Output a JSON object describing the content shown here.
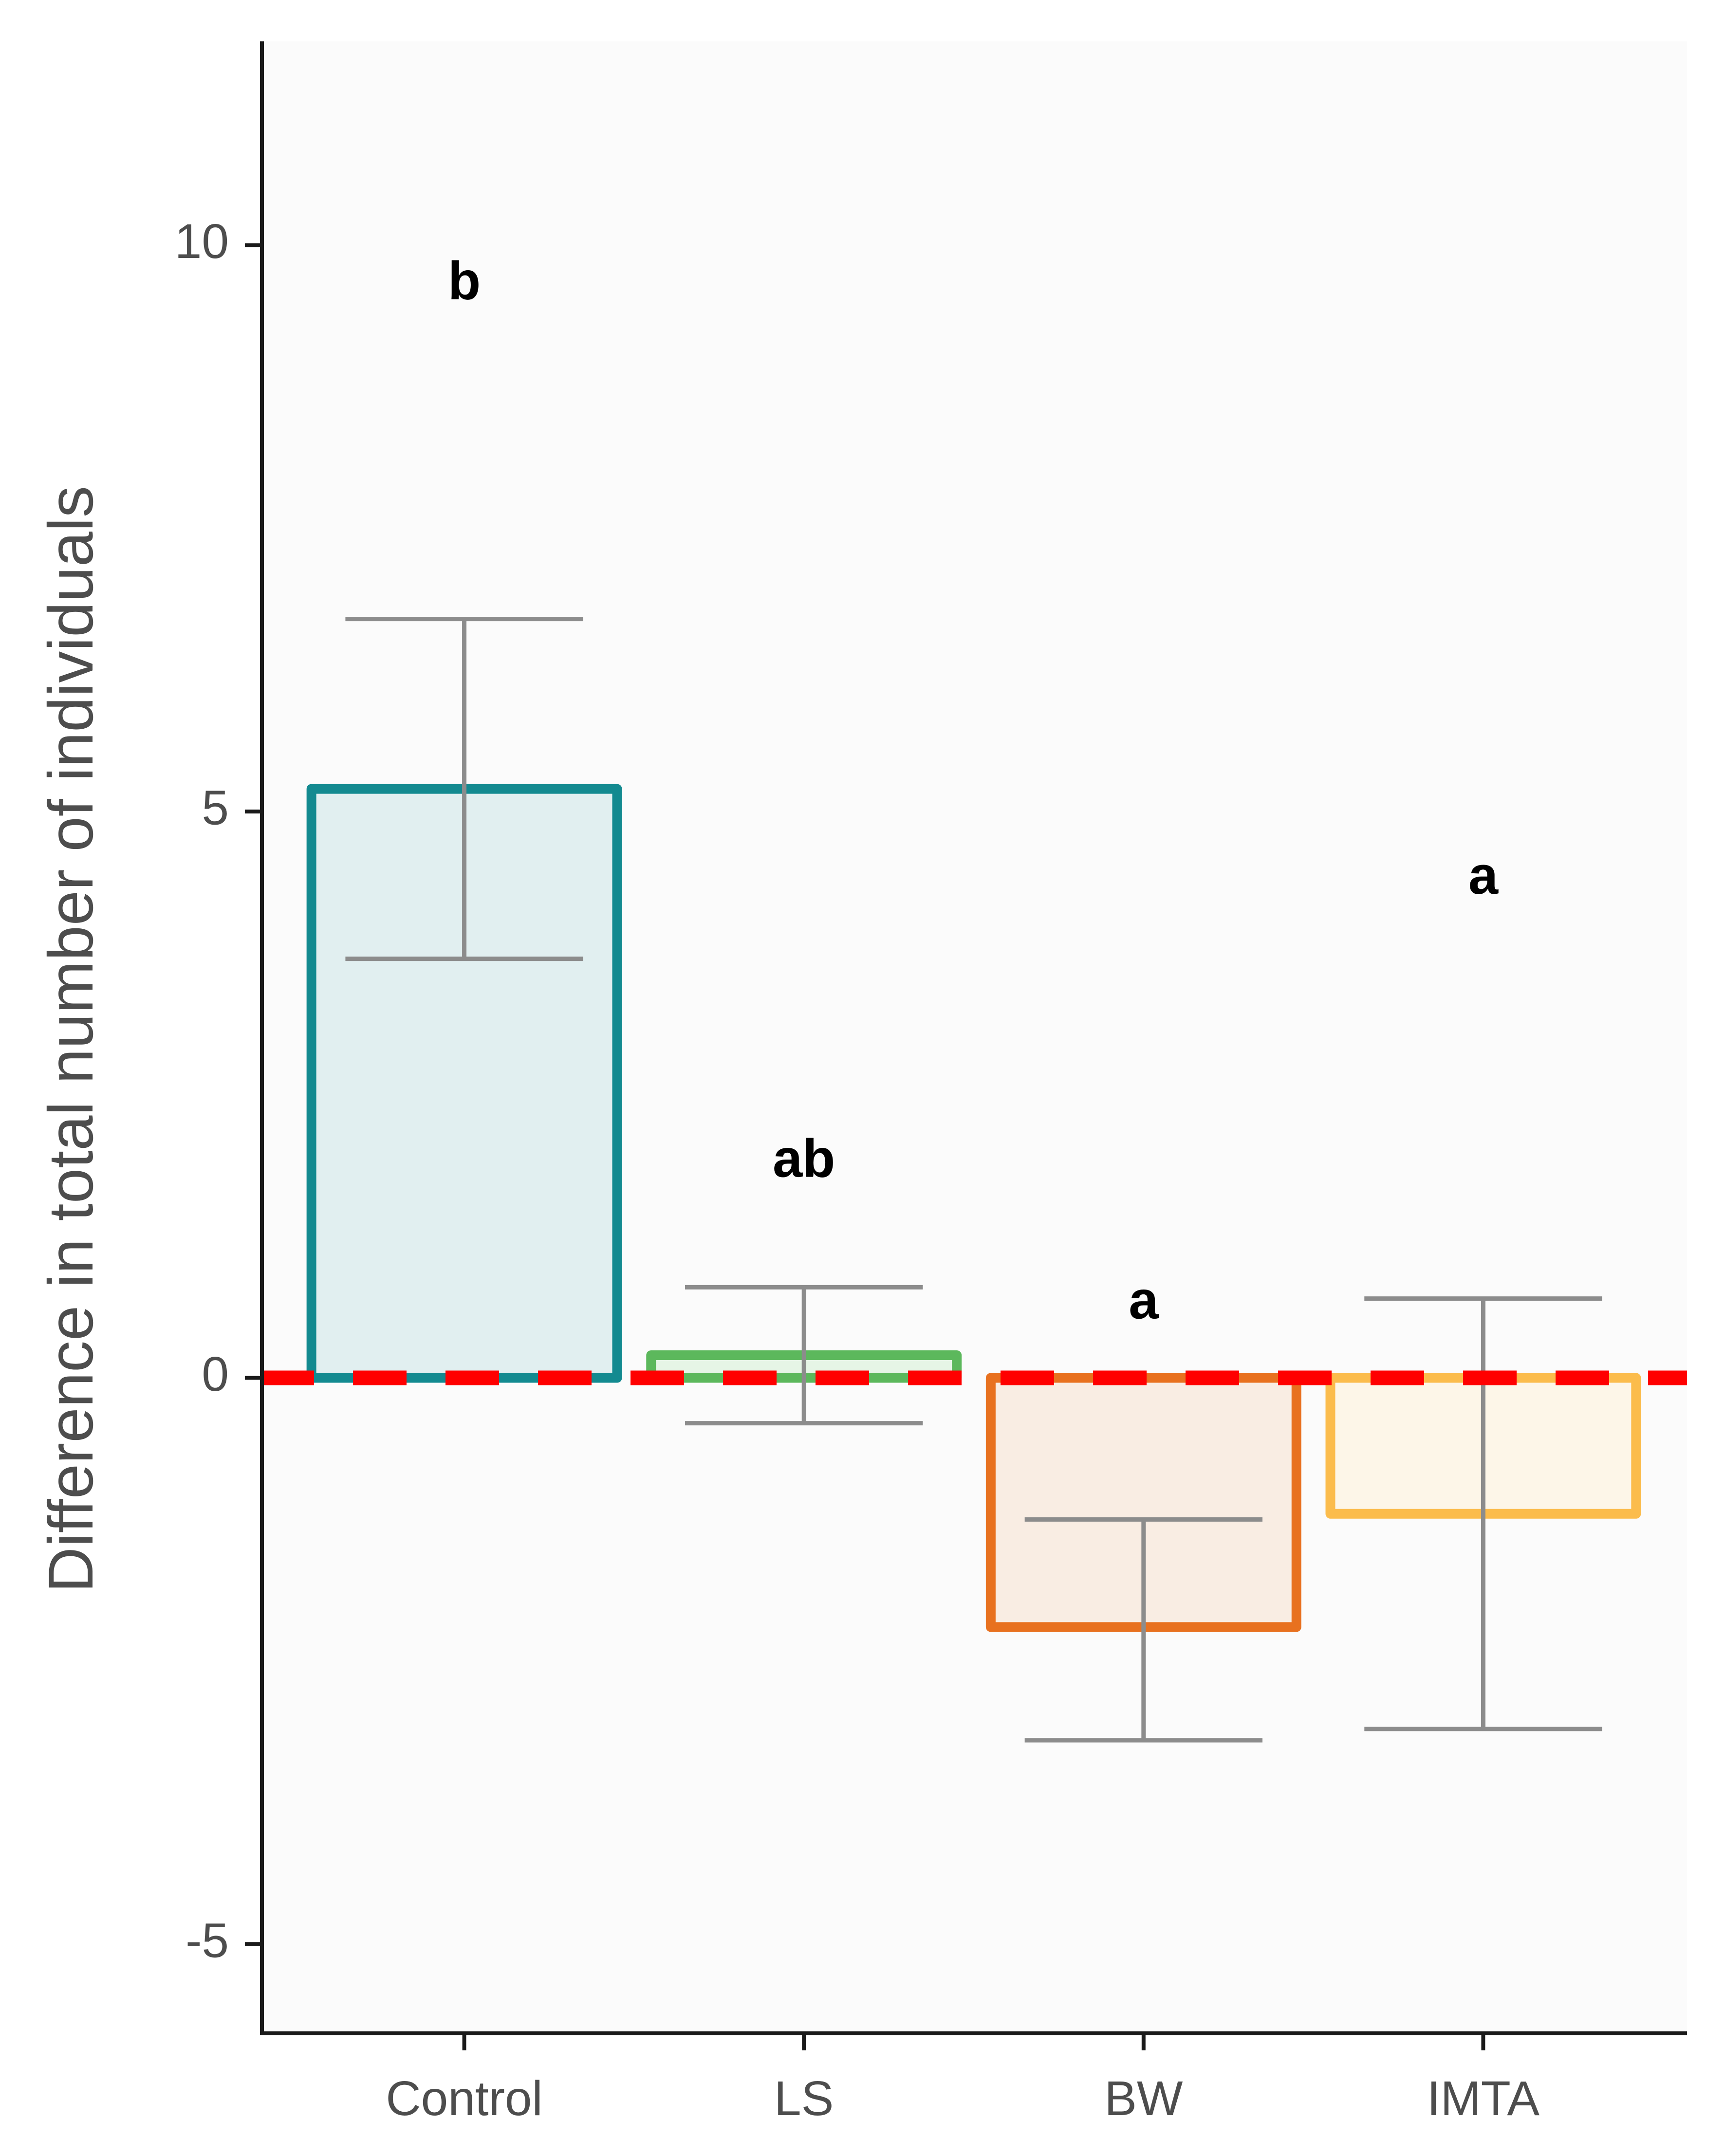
{
  "chart_data": {
    "type": "bar",
    "title": "",
    "xlabel": "",
    "ylabel": "Difference in total number of individuals",
    "ylim": [
      -5.8,
      11.8
    ],
    "yticks": [
      -5,
      0,
      5,
      10
    ],
    "ytick_labels": [
      "-5",
      "0",
      "5",
      "10"
    ],
    "categories": [
      "Control",
      "LS",
      "BW",
      "IMTA"
    ],
    "values": [
      5.2,
      0.2,
      -2.2,
      -1.2
    ],
    "error_low": [
      3.7,
      -0.4,
      -3.2,
      -3.1
    ],
    "error_high": [
      6.7,
      0.8,
      -1.25,
      0.7
    ],
    "significance_labels": [
      "b",
      "ab",
      "a",
      "a"
    ],
    "significance_y": [
      9.65,
      1.9,
      0.65,
      4.4
    ],
    "reference_line": {
      "y": 0,
      "color": "#ff0000",
      "style": "dashed"
    },
    "grid": false,
    "legend": "none",
    "colors": {
      "outline": [
        "#138a90",
        "#5cb85c",
        "#e8711f",
        "#fbbc4c"
      ],
      "fill": [
        "#e1eff0",
        "#e6f5e6",
        "#f9ede3",
        "#fdf6e8"
      ],
      "error_bar": "#8c8c8c",
      "panel_background": "#fbfbfb",
      "axis": "#1a1a1a"
    }
  }
}
